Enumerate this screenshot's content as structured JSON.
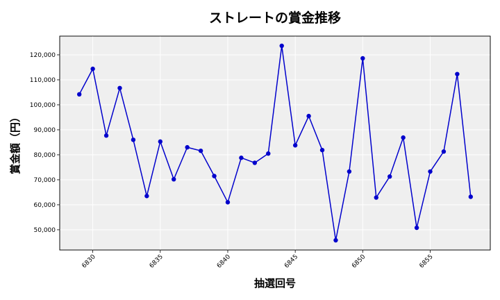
{
  "chart_data": {
    "type": "line",
    "title": "ストレートの賞金推移",
    "xlabel": "抽選回号",
    "ylabel": "賞金額（円）",
    "x": [
      6829,
      6830,
      6831,
      6832,
      6833,
      6834,
      6835,
      6836,
      6837,
      6838,
      6839,
      6840,
      6841,
      6842,
      6843,
      6844,
      6845,
      6846,
      6847,
      6848,
      6849,
      6850,
      6851,
      6852,
      6853,
      6854,
      6855,
      6856,
      6857,
      6858
    ],
    "series": [
      {
        "values": [
          104200,
          114400,
          87700,
          106700,
          86000,
          63500,
          85300,
          70200,
          83000,
          81600,
          71500,
          61000,
          78800,
          76800,
          80500,
          123600,
          83800,
          95500,
          81900,
          45800,
          73300,
          118600,
          62900,
          71300,
          86900,
          50800,
          73300,
          81300,
          112300,
          63200
        ],
        "color": "#0000cc"
      }
    ],
    "xticks": [
      6830,
      6835,
      6840,
      6845,
      6850,
      6855
    ],
    "xtick_labels": [
      "6830",
      "6835",
      "6840",
      "6845",
      "6850",
      "6855"
    ],
    "yticks": [
      50000,
      60000,
      70000,
      80000,
      90000,
      100000,
      110000,
      120000
    ],
    "ytick_labels": [
      "50,000",
      "60,000",
      "70,000",
      "80,000",
      "90,000",
      "100,000",
      "110,000",
      "120,000"
    ],
    "xlim": [
      6827.55,
      6859.45
    ],
    "ylim": [
      41910,
      127490
    ],
    "grid": true,
    "plot_background": "#efefef",
    "grid_color": "#ffffff"
  }
}
